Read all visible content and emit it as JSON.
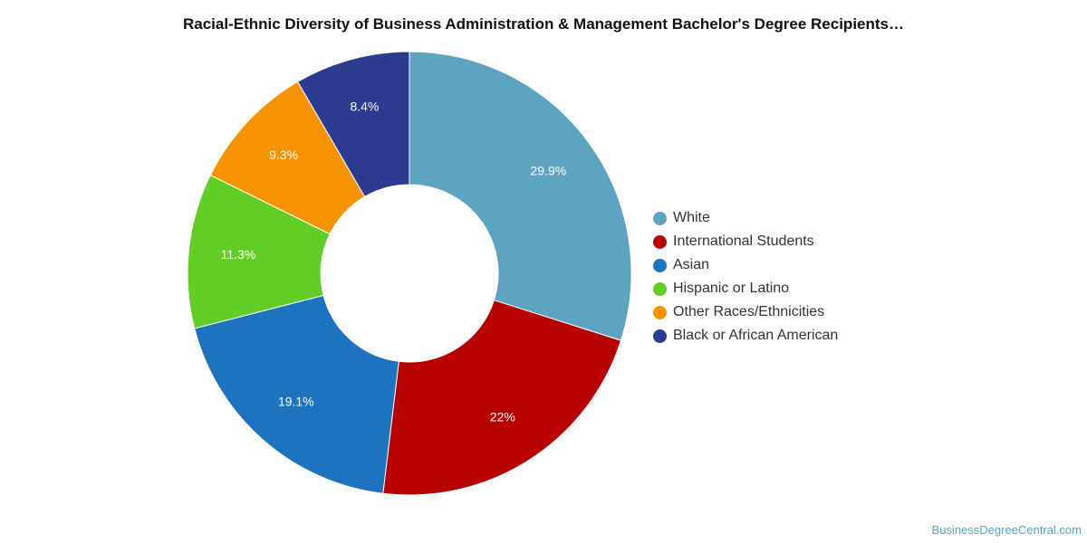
{
  "chart_data": {
    "type": "pie",
    "variant": "donut",
    "title": "Racial-Ethnic Diversity of Business Administration & Management Bachelor's Degree Recipients…",
    "legend_position": "right",
    "slices": [
      {
        "label": "White",
        "value": 29.9,
        "display": "29.9%",
        "color": "#5ea4c1"
      },
      {
        "label": "International Students",
        "value": 22,
        "display": "22%",
        "color": "#b70000"
      },
      {
        "label": "Asian",
        "value": 19.1,
        "display": "19.1%",
        "color": "#1e73be"
      },
      {
        "label": "Hispanic or Latino",
        "value": 11.3,
        "display": "11.3%",
        "color": "#62cd25"
      },
      {
        "label": "Other Races/Ethnicities",
        "value": 9.3,
        "display": "9.3%",
        "color": "#f79300"
      },
      {
        "label": "Black or African American",
        "value": 8.4,
        "display": "8.4%",
        "color": "#2c3a8f"
      }
    ]
  },
  "footer": {
    "credit": "BusinessDegreeCentral.com"
  }
}
